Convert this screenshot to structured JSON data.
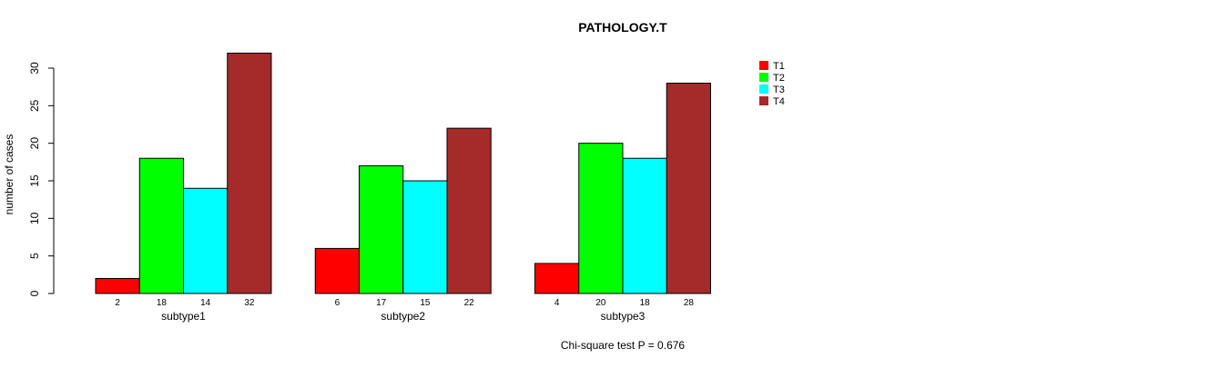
{
  "chart_data": {
    "type": "bar",
    "title": "PATHOLOGY.T",
    "xlabel": "",
    "ylabel": "number of cases",
    "ylim": [
      0,
      30
    ],
    "yticks": [
      0,
      5,
      10,
      15,
      20,
      25,
      30
    ],
    "categories": [
      "subtype1",
      "subtype2",
      "subtype3"
    ],
    "series": [
      {
        "name": "T1",
        "color": "#ff0000",
        "values": [
          2,
          6,
          4
        ]
      },
      {
        "name": "T2",
        "color": "#00ff00",
        "values": [
          18,
          17,
          20
        ]
      },
      {
        "name": "T3",
        "color": "#00ffff",
        "values": [
          14,
          15,
          18
        ]
      },
      {
        "name": "T4",
        "color": "#a52a2a",
        "values": [
          32,
          22,
          28
        ]
      }
    ],
    "legend_position": "top-right",
    "grid": false,
    "footnote": "Chi-square test P = 0.676"
  }
}
